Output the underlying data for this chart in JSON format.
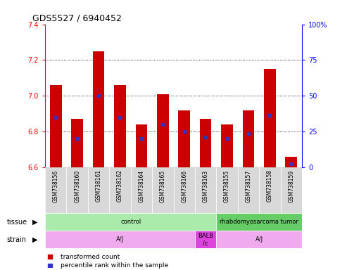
{
  "title": "GDS5527 / 6940452",
  "samples": [
    "GSM738156",
    "GSM738160",
    "GSM738161",
    "GSM738162",
    "GSM738164",
    "GSM738165",
    "GSM738166",
    "GSM738163",
    "GSM738155",
    "GSM738157",
    "GSM738158",
    "GSM738159"
  ],
  "bar_values": [
    7.06,
    6.87,
    7.25,
    7.06,
    6.84,
    7.01,
    6.92,
    6.87,
    6.84,
    6.92,
    7.15,
    6.66
  ],
  "blue_dot_values": [
    6.88,
    6.76,
    7.0,
    6.88,
    6.76,
    6.84,
    6.8,
    6.77,
    6.76,
    6.79,
    6.89,
    6.62
  ],
  "ymin": 6.6,
  "ymax": 7.4,
  "yticks": [
    6.6,
    6.8,
    7.0,
    7.2,
    7.4
  ],
  "right_yticks": [
    0,
    25,
    50,
    75,
    100
  ],
  "bar_color": "#cc0000",
  "dot_color": "#3333cc",
  "ticklabel_bg": "#d8d8d8",
  "tissue_control_color": "#aaeaaa",
  "tissue_tumor_color": "#66cc66",
  "strain_aj_color": "#f0aaee",
  "strain_balb_color": "#dd44dd",
  "tissue_labels": [
    {
      "text": "control",
      "start": 0,
      "end": 8
    },
    {
      "text": "rhabdomyosarcoma tumor",
      "start": 8,
      "end": 12
    }
  ],
  "strain_labels": [
    {
      "text": "A/J",
      "start": 0,
      "end": 7
    },
    {
      "text": "BALB\n/c",
      "start": 7,
      "end": 8
    },
    {
      "text": "A/J",
      "start": 8,
      "end": 12
    }
  ]
}
